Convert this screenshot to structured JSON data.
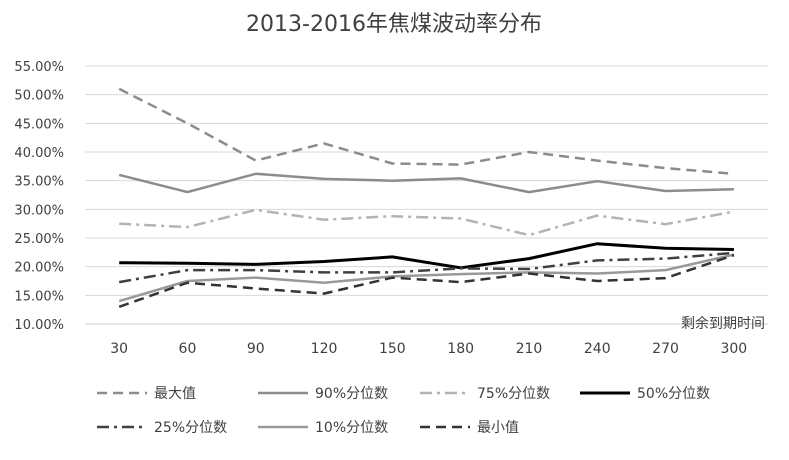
{
  "chart_data": {
    "type": "line",
    "title": "2013-2016年焦煤波动率分布",
    "xlabel": "剩余到期时间",
    "ylabel": "",
    "categories": [
      "30",
      "60",
      "90",
      "120",
      "150",
      "180",
      "210",
      "240",
      "270",
      "300"
    ],
    "yticks": [
      "10.00%",
      "15.00%",
      "20.00%",
      "25.00%",
      "30.00%",
      "35.00%",
      "40.00%",
      "45.00%",
      "50.00%",
      "55.00%"
    ],
    "ylim": [
      10,
      55
    ],
    "grid": true,
    "legend_position": "bottom",
    "series": [
      {
        "name": "最大值",
        "style": "dash",
        "color": "#8c8c8c",
        "width": 2.5,
        "values": [
          51.0,
          45.0,
          38.5,
          41.5,
          38.0,
          37.8,
          40.0,
          38.5,
          37.2,
          36.2
        ]
      },
      {
        "name": "90%分位数",
        "style": "solid",
        "color": "#8c8c8c",
        "width": 2.5,
        "values": [
          36.0,
          33.0,
          36.2,
          35.3,
          35.0,
          35.4,
          33.0,
          34.9,
          33.2,
          33.5
        ]
      },
      {
        "name": "75%分位数",
        "style": "dashdot",
        "color": "#b3b3b3",
        "width": 2.5,
        "values": [
          27.5,
          26.9,
          29.9,
          28.2,
          28.8,
          28.4,
          25.5,
          28.9,
          27.4,
          29.6
        ]
      },
      {
        "name": "50%分位数",
        "style": "solid",
        "color": "#000000",
        "width": 3,
        "values": [
          20.7,
          20.6,
          20.4,
          20.9,
          21.7,
          19.8,
          21.4,
          24.0,
          23.2,
          23.0
        ]
      },
      {
        "name": "25%分位数",
        "style": "dashdot",
        "color": "#404040",
        "width": 2.5,
        "values": [
          17.3,
          19.4,
          19.4,
          19.0,
          19.0,
          19.7,
          19.6,
          21.1,
          21.4,
          22.4
        ]
      },
      {
        "name": "10%分位数",
        "style": "solid",
        "color": "#999999",
        "width": 2.5,
        "values": [
          14.0,
          17.5,
          18.1,
          17.2,
          18.3,
          18.7,
          19.0,
          18.8,
          19.4,
          22.1
        ]
      },
      {
        "name": "最小值",
        "style": "dash",
        "color": "#333333",
        "width": 2.5,
        "values": [
          13.0,
          17.2,
          16.2,
          15.3,
          18.1,
          17.3,
          18.8,
          17.5,
          18.0,
          22.0
        ]
      }
    ]
  }
}
